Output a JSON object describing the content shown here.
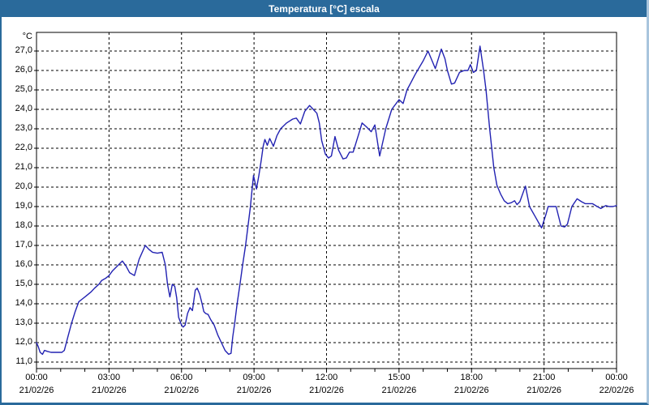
{
  "window": {
    "title": "Temperatura [°C] escala"
  },
  "colors": {
    "titlebar_bg": "#2a6a9b",
    "titlebar_text": "#ffffff",
    "window_border": "#2a6a9b",
    "plot_bg": "#ffffff",
    "grid": "#000000",
    "line": "#2222b2"
  },
  "chart_data": {
    "type": "line",
    "title": "Temperatura [°C] escala",
    "unit_label": "°C",
    "series_name": "Temperatura",
    "grid": "dashed",
    "legend": "none",
    "ylim": [
      11,
      27
    ],
    "y_tick_step": 1,
    "y_tick_labels": [
      "27,0",
      "26,0",
      "25,0",
      "24,0",
      "23,0",
      "22,0",
      "21,0",
      "20,0",
      "19,0",
      "18,0",
      "17,0",
      "16,0",
      "15,0",
      "14,0",
      "13,0",
      "12,0",
      "11,0"
    ],
    "y_tick_values": [
      27,
      26,
      25,
      24,
      23,
      22,
      21,
      20,
      19,
      18,
      17,
      16,
      15,
      14,
      13,
      12,
      11
    ],
    "x_range_hours": [
      0,
      24
    ],
    "x_major_step_hours": 3,
    "x_minor_step_hours": 1,
    "x_ticks": [
      {
        "hour": 0,
        "time": "00:00",
        "date": "21/02/26"
      },
      {
        "hour": 3,
        "time": "03:00",
        "date": "21/02/26"
      },
      {
        "hour": 6,
        "time": "06:00",
        "date": "21/02/26"
      },
      {
        "hour": 9,
        "time": "09:00",
        "date": "21/02/26"
      },
      {
        "hour": 12,
        "time": "12:00",
        "date": "21/02/26"
      },
      {
        "hour": 15,
        "time": "15:00",
        "date": "21/02/26"
      },
      {
        "hour": 18,
        "time": "18:00",
        "date": "21/02/26"
      },
      {
        "hour": 21,
        "time": "21:00",
        "date": "21/02/26"
      },
      {
        "hour": 24,
        "time": "00:00",
        "date": "22/02/26"
      }
    ],
    "points": [
      [
        0.0,
        12.0
      ],
      [
        0.07,
        11.8
      ],
      [
        0.15,
        11.5
      ],
      [
        0.25,
        11.4
      ],
      [
        0.33,
        11.6
      ],
      [
        0.45,
        11.55
      ],
      [
        0.6,
        11.5
      ],
      [
        0.75,
        11.5
      ],
      [
        0.9,
        11.5
      ],
      [
        1.05,
        11.5
      ],
      [
        1.15,
        11.6
      ],
      [
        1.3,
        12.3
      ],
      [
        1.45,
        13.0
      ],
      [
        1.6,
        13.6
      ],
      [
        1.75,
        14.1
      ],
      [
        1.9,
        14.25
      ],
      [
        2.05,
        14.4
      ],
      [
        2.25,
        14.6
      ],
      [
        2.4,
        14.8
      ],
      [
        2.58,
        15.0
      ],
      [
        2.7,
        15.2
      ],
      [
        2.85,
        15.3
      ],
      [
        3.0,
        15.45
      ],
      [
        3.15,
        15.7
      ],
      [
        3.35,
        15.95
      ],
      [
        3.55,
        16.2
      ],
      [
        3.7,
        15.95
      ],
      [
        3.85,
        15.6
      ],
      [
        4.05,
        15.45
      ],
      [
        4.25,
        16.3
      ],
      [
        4.5,
        17.0
      ],
      [
        4.65,
        16.8
      ],
      [
        4.8,
        16.65
      ],
      [
        5.0,
        16.6
      ],
      [
        5.2,
        16.65
      ],
      [
        5.33,
        16.0
      ],
      [
        5.42,
        15.0
      ],
      [
        5.52,
        14.35
      ],
      [
        5.62,
        15.0
      ],
      [
        5.72,
        14.9
      ],
      [
        5.8,
        14.3
      ],
      [
        5.88,
        13.3
      ],
      [
        6.0,
        12.9
      ],
      [
        6.07,
        12.8
      ],
      [
        6.15,
        12.9
      ],
      [
        6.25,
        13.5
      ],
      [
        6.35,
        13.8
      ],
      [
        6.45,
        13.65
      ],
      [
        6.57,
        14.7
      ],
      [
        6.65,
        14.8
      ],
      [
        6.75,
        14.5
      ],
      [
        6.85,
        14.0
      ],
      [
        6.92,
        13.6
      ],
      [
        7.0,
        13.5
      ],
      [
        7.1,
        13.45
      ],
      [
        7.2,
        13.2
      ],
      [
        7.35,
        12.9
      ],
      [
        7.5,
        12.4
      ],
      [
        7.65,
        12.0
      ],
      [
        7.8,
        11.6
      ],
      [
        7.95,
        11.4
      ],
      [
        8.05,
        11.45
      ],
      [
        8.12,
        12.3
      ],
      [
        8.2,
        13.0
      ],
      [
        8.3,
        14.0
      ],
      [
        8.42,
        15.0
      ],
      [
        8.53,
        16.0
      ],
      [
        8.65,
        17.0
      ],
      [
        8.75,
        18.0
      ],
      [
        8.85,
        19.0
      ],
      [
        8.93,
        20.0
      ],
      [
        8.98,
        20.6
      ],
      [
        9.1,
        19.9
      ],
      [
        9.2,
        20.6
      ],
      [
        9.3,
        21.4
      ],
      [
        9.38,
        22.1
      ],
      [
        9.45,
        22.45
      ],
      [
        9.55,
        22.15
      ],
      [
        9.65,
        22.5
      ],
      [
        9.8,
        22.1
      ],
      [
        9.95,
        22.65
      ],
      [
        10.1,
        23.0
      ],
      [
        10.35,
        23.3
      ],
      [
        10.6,
        23.5
      ],
      [
        10.75,
        23.55
      ],
      [
        10.92,
        23.25
      ],
      [
        11.1,
        23.9
      ],
      [
        11.3,
        24.2
      ],
      [
        11.45,
        24.0
      ],
      [
        11.6,
        23.8
      ],
      [
        11.7,
        23.3
      ],
      [
        11.8,
        22.4
      ],
      [
        11.95,
        21.7
      ],
      [
        12.08,
        21.5
      ],
      [
        12.2,
        21.6
      ],
      [
        12.35,
        22.6
      ],
      [
        12.5,
        21.9
      ],
      [
        12.68,
        21.45
      ],
      [
        12.82,
        21.5
      ],
      [
        12.95,
        21.8
      ],
      [
        13.1,
        21.8
      ],
      [
        13.35,
        22.8
      ],
      [
        13.47,
        23.3
      ],
      [
        13.65,
        23.1
      ],
      [
        13.85,
        22.85
      ],
      [
        14.0,
        23.2
      ],
      [
        14.2,
        21.6
      ],
      [
        14.45,
        23.0
      ],
      [
        14.7,
        24.0
      ],
      [
        15.0,
        24.5
      ],
      [
        15.17,
        24.3
      ],
      [
        15.33,
        25.0
      ],
      [
        15.5,
        25.4
      ],
      [
        15.67,
        25.8
      ],
      [
        16.0,
        26.5
      ],
      [
        16.2,
        27.0
      ],
      [
        16.5,
        26.1
      ],
      [
        16.75,
        27.1
      ],
      [
        16.9,
        26.6
      ],
      [
        17.0,
        26.0
      ],
      [
        17.17,
        25.3
      ],
      [
        17.3,
        25.35
      ],
      [
        17.5,
        25.9
      ],
      [
        17.7,
        26.0
      ],
      [
        17.85,
        26.0
      ],
      [
        17.95,
        26.3
      ],
      [
        18.08,
        25.9
      ],
      [
        18.2,
        26.0
      ],
      [
        18.35,
        27.25
      ],
      [
        18.5,
        26.0
      ],
      [
        18.6,
        25.0
      ],
      [
        18.75,
        23.0
      ],
      [
        18.92,
        21.0
      ],
      [
        19.05,
        20.1
      ],
      [
        19.2,
        19.65
      ],
      [
        19.35,
        19.3
      ],
      [
        19.5,
        19.15
      ],
      [
        19.65,
        19.2
      ],
      [
        19.78,
        19.3
      ],
      [
        19.88,
        19.1
      ],
      [
        20.0,
        19.25
      ],
      [
        20.23,
        20.05
      ],
      [
        20.4,
        19.0
      ],
      [
        20.65,
        18.45
      ],
      [
        20.9,
        17.9
      ],
      [
        21.08,
        18.6
      ],
      [
        21.17,
        19.0
      ],
      [
        21.35,
        19.0
      ],
      [
        21.5,
        19.0
      ],
      [
        21.6,
        18.5
      ],
      [
        21.7,
        18.0
      ],
      [
        21.85,
        17.95
      ],
      [
        21.97,
        18.1
      ],
      [
        22.15,
        19.0
      ],
      [
        22.37,
        19.4
      ],
      [
        22.55,
        19.25
      ],
      [
        22.7,
        19.15
      ],
      [
        23.0,
        19.15
      ],
      [
        23.2,
        19.0
      ],
      [
        23.35,
        18.9
      ],
      [
        23.55,
        19.05
      ],
      [
        23.7,
        19.0
      ],
      [
        23.85,
        19.0
      ],
      [
        24.0,
        19.05
      ]
    ]
  }
}
